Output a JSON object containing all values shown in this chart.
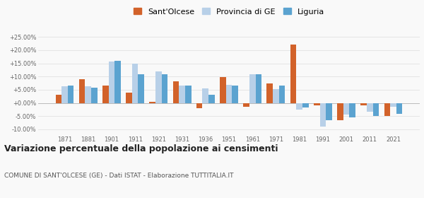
{
  "years": [
    1871,
    1881,
    1901,
    1911,
    1921,
    1931,
    1936,
    1951,
    1961,
    1971,
    1981,
    1991,
    2001,
    2011,
    2021
  ],
  "santolcese": [
    3.2,
    9.0,
    6.5,
    3.8,
    0.5,
    8.1,
    -2.0,
    9.8,
    -1.5,
    7.5,
    22.0,
    -1.0,
    -6.5,
    -1.0,
    -5.0
  ],
  "provincia_ge": [
    6.2,
    6.3,
    15.8,
    14.8,
    12.0,
    6.5,
    5.5,
    6.8,
    10.8,
    5.3,
    -2.5,
    -9.0,
    -4.5,
    -3.2,
    -1.5
  ],
  "liguria": [
    6.5,
    5.8,
    15.9,
    11.0,
    10.8,
    6.5,
    3.0,
    6.7,
    10.8,
    6.6,
    -1.8,
    -6.5,
    -5.5,
    -4.8,
    -4.0
  ],
  "color_santolcese": "#d2622a",
  "color_provincia": "#b8d0e8",
  "color_liguria": "#5ba3d0",
  "title": "Variazione percentuale della popolazione ai censimenti",
  "subtitle": "COMUNE DI SANT'OLCESE (GE) - Dati ISTAT - Elaborazione TUTTITALIA.IT",
  "legend_labels": [
    "Sant'Olcese",
    "Provincia di GE",
    "Liguria"
  ],
  "ylim": [
    -12,
    27
  ],
  "yticks": [
    -10,
    -5,
    0,
    5,
    10,
    15,
    20,
    25
  ],
  "background_color": "#f9f9f9"
}
